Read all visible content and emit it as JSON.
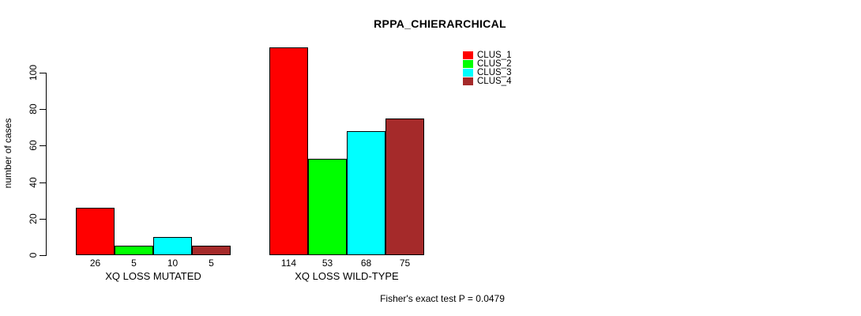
{
  "chart_data": {
    "type": "bar",
    "title": "RPPA_CHIERARCHICAL",
    "xlabel": "",
    "ylabel": "number of cases",
    "ylim": [
      0,
      115
    ],
    "yticks": [
      0,
      20,
      40,
      60,
      80,
      100
    ],
    "grid": false,
    "legend_position": "top-right",
    "categories": [
      "XQ LOSS MUTATED",
      "XQ LOSS WILD-TYPE"
    ],
    "series": [
      {
        "name": "CLUS_1",
        "color": "#ff0000",
        "values": [
          26,
          114
        ]
      },
      {
        "name": "CLUS_2",
        "color": "#00ff00",
        "values": [
          5,
          53
        ]
      },
      {
        "name": "CLUS_3",
        "color": "#00ffff",
        "values": [
          10,
          68
        ]
      },
      {
        "name": "CLUS_4",
        "color": "#a52a2a",
        "values": [
          5,
          75
        ]
      }
    ],
    "bar_value_labels": [
      [
        "26",
        "5",
        "10",
        "5"
      ],
      [
        "114",
        "53",
        "68",
        "75"
      ]
    ],
    "annotation": "Fisher's exact test P = 0.0479"
  }
}
